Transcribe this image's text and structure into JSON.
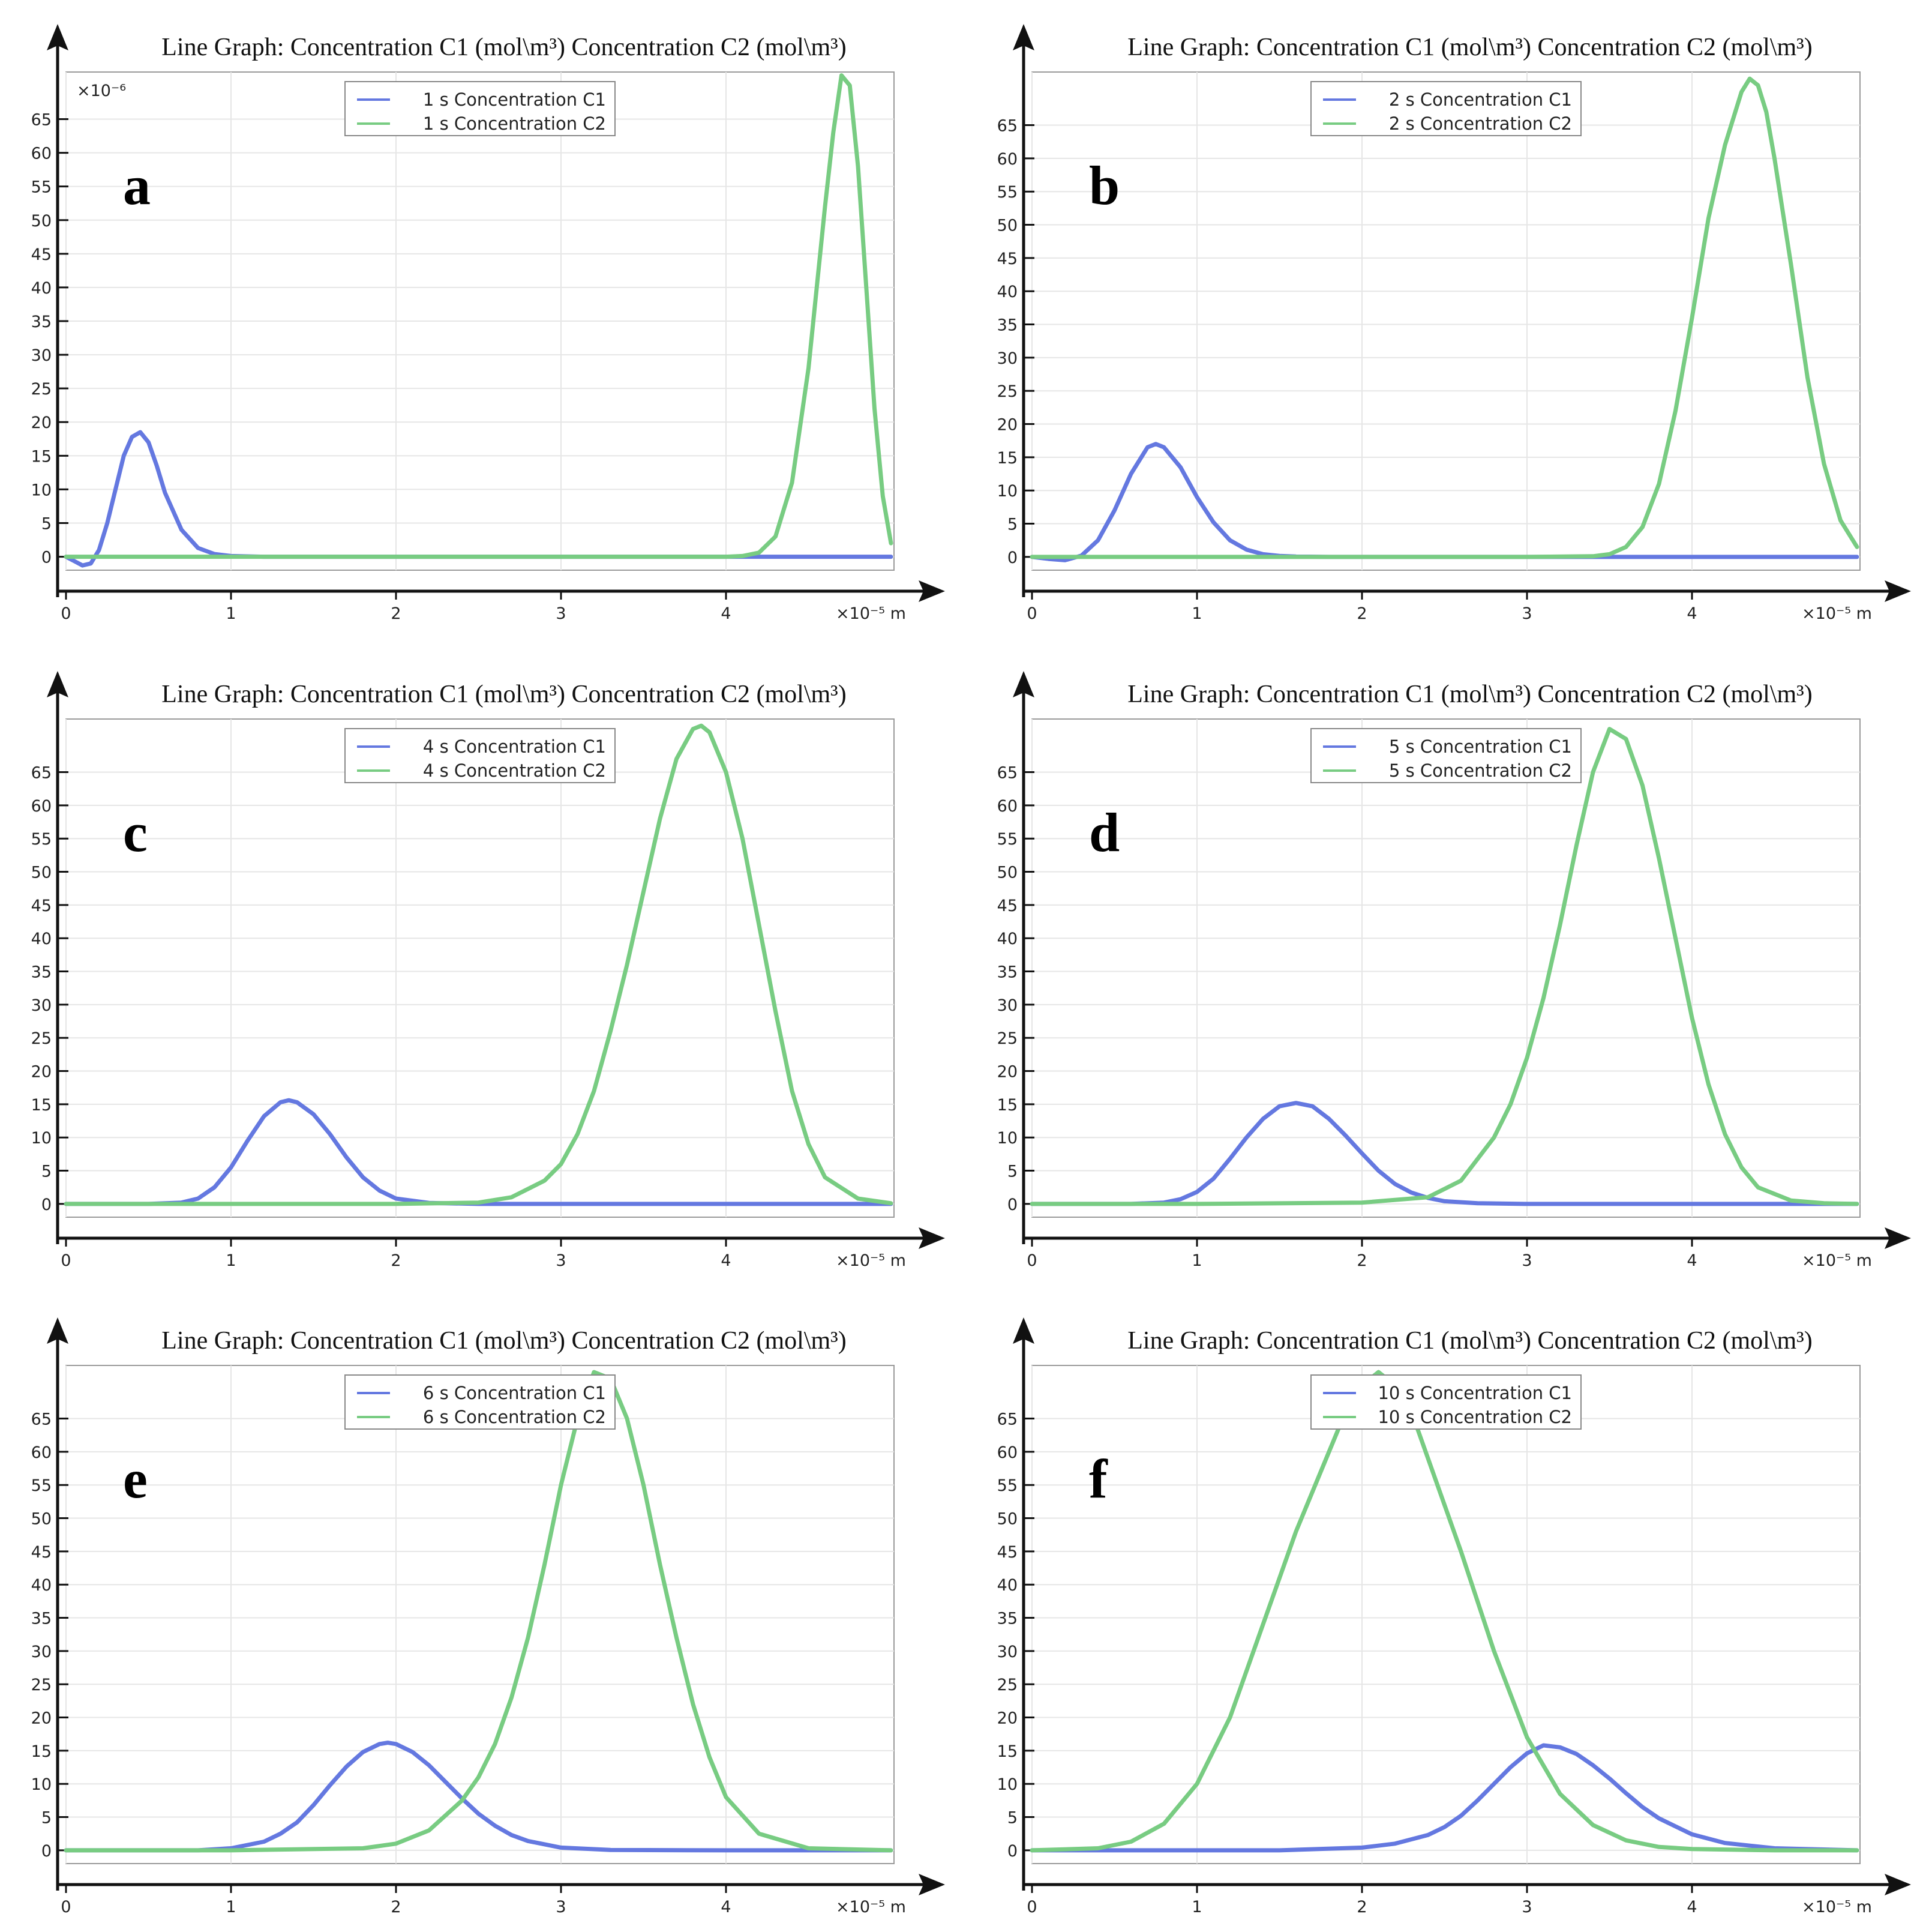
{
  "figure": {
    "colors": {
      "c1": "#6478e0",
      "c2": "#78cc82",
      "axis": "#111111",
      "grid": "#e6e6e6"
    }
  },
  "chart_data": [
    {
      "panel": "a",
      "type": "line",
      "title": "Line Graph: Concentration C1 (mol\\m³) Concentration C2 (mol\\m³)",
      "y_scale_label": "×10⁻⁶",
      "x_unit": "×10⁻⁵ m",
      "x_ticks": [
        "0",
        "1",
        "2",
        "3",
        "4"
      ],
      "y_ticks": [
        "0",
        "5",
        "10",
        "15",
        "20",
        "25",
        "30",
        "35",
        "40",
        "45",
        "50",
        "55",
        "60",
        "65"
      ],
      "xlim": [
        0,
        5
      ],
      "ylim": [
        -2,
        72
      ],
      "series": [
        {
          "name": "1 s Concentration C1",
          "color": "#6478e0",
          "x": [
            0,
            0.1,
            0.15,
            0.2,
            0.25,
            0.3,
            0.35,
            0.4,
            0.45,
            0.5,
            0.55,
            0.6,
            0.7,
            0.8,
            0.9,
            1.0,
            1.2,
            1.5,
            2,
            2.5,
            3,
            3.5,
            4,
            4.5,
            5
          ],
          "y": [
            0,
            -1.3,
            -1,
            1,
            5,
            10,
            15,
            17.8,
            18.5,
            17,
            13.5,
            9.5,
            4,
            1.3,
            0.4,
            0.1,
            0,
            0,
            0,
            0,
            0,
            0,
            0,
            0,
            0
          ]
        },
        {
          "name": "1 s Concentration C2",
          "color": "#78cc82",
          "x": [
            0,
            1,
            2,
            3,
            4,
            4.1,
            4.2,
            4.3,
            4.4,
            4.5,
            4.6,
            4.65,
            4.7,
            4.75,
            4.8,
            4.85,
            4.9,
            4.95,
            5.0
          ],
          "y": [
            0,
            0,
            0,
            0,
            0,
            0.1,
            0.6,
            3,
            11,
            28,
            52,
            63,
            71.5,
            70,
            58,
            40,
            22,
            9,
            2
          ]
        }
      ]
    },
    {
      "panel": "b",
      "type": "line",
      "title": "Line Graph: Concentration C1 (mol\\m³) Concentration C2 (mol\\m³)",
      "x_unit": "×10⁻⁵ m",
      "x_ticks": [
        "0",
        "1",
        "2",
        "3",
        "4"
      ],
      "y_ticks": [
        "0",
        "5",
        "10",
        "15",
        "20",
        "25",
        "30",
        "35",
        "40",
        "45",
        "50",
        "55",
        "60",
        "65"
      ],
      "xlim": [
        0,
        5
      ],
      "ylim": [
        -2,
        73
      ],
      "series": [
        {
          "name": "2 s Concentration C1",
          "color": "#6478e0",
          "x": [
            0,
            0.1,
            0.2,
            0.3,
            0.4,
            0.5,
            0.6,
            0.7,
            0.75,
            0.8,
            0.9,
            1.0,
            1.1,
            1.2,
            1.3,
            1.4,
            1.5,
            1.6,
            1.8,
            2.0,
            3,
            4,
            5
          ],
          "y": [
            0,
            -0.3,
            -0.5,
            0.2,
            2.5,
            7,
            12.5,
            16.5,
            17,
            16.5,
            13.5,
            9,
            5.2,
            2.5,
            1.1,
            0.4,
            0.15,
            0.05,
            0,
            0,
            0,
            0,
            0
          ]
        },
        {
          "name": "2 s Concentration C2",
          "color": "#78cc82",
          "x": [
            0,
            1,
            2,
            3,
            3.4,
            3.5,
            3.6,
            3.7,
            3.8,
            3.9,
            4.0,
            4.1,
            4.2,
            4.3,
            4.35,
            4.4,
            4.45,
            4.5,
            4.6,
            4.7,
            4.8,
            4.9,
            5.0
          ],
          "y": [
            0,
            0,
            0,
            0,
            0.1,
            0.4,
            1.5,
            4.5,
            11,
            22,
            36,
            51,
            62,
            70,
            72,
            71,
            67,
            60,
            44,
            27,
            14,
            5.5,
            1.5
          ]
        }
      ]
    },
    {
      "panel": "c",
      "type": "line",
      "title": "Line Graph: Concentration C1 (mol\\m³) Concentration C2 (mol\\m³)",
      "x_unit": "×10⁻⁵ m",
      "x_ticks": [
        "0",
        "1",
        "2",
        "3",
        "4"
      ],
      "y_ticks": [
        "0",
        "5",
        "10",
        "15",
        "20",
        "25",
        "30",
        "35",
        "40",
        "45",
        "50",
        "55",
        "60",
        "65"
      ],
      "xlim": [
        0,
        5
      ],
      "ylim": [
        -2,
        73
      ],
      "series": [
        {
          "name": "4 s Concentration C1",
          "color": "#6478e0",
          "x": [
            0,
            0.5,
            0.7,
            0.8,
            0.9,
            1.0,
            1.1,
            1.2,
            1.3,
            1.35,
            1.4,
            1.5,
            1.6,
            1.7,
            1.8,
            1.9,
            2.0,
            2.2,
            2.5,
            3,
            4,
            5
          ],
          "y": [
            0,
            0,
            0.2,
            0.8,
            2.5,
            5.5,
            9.5,
            13.2,
            15.3,
            15.6,
            15.3,
            13.5,
            10.5,
            7,
            4,
            2,
            0.8,
            0.15,
            0,
            0,
            0,
            0
          ]
        },
        {
          "name": "4 s Concentration C2",
          "color": "#78cc82",
          "x": [
            0,
            1,
            2,
            2.5,
            2.7,
            2.9,
            3.0,
            3.1,
            3.2,
            3.3,
            3.4,
            3.5,
            3.6,
            3.7,
            3.8,
            3.85,
            3.9,
            4.0,
            4.1,
            4.2,
            4.3,
            4.4,
            4.5,
            4.6,
            4.8,
            5.0
          ],
          "y": [
            0,
            0,
            0,
            0.2,
            1,
            3.5,
            6,
            10.5,
            17,
            26,
            36,
            47,
            58,
            67,
            71.5,
            72,
            71,
            65,
            55,
            42,
            29,
            17,
            9,
            4,
            0.8,
            0.1
          ]
        }
      ]
    },
    {
      "panel": "d",
      "type": "line",
      "title": "Line Graph: Concentration C1 (mol\\m³) Concentration C2 (mol\\m³)",
      "x_unit": "×10⁻⁵ m",
      "x_ticks": [
        "0",
        "1",
        "2",
        "3",
        "4"
      ],
      "y_ticks": [
        "0",
        "5",
        "10",
        "15",
        "20",
        "25",
        "30",
        "35",
        "40",
        "45",
        "50",
        "55",
        "60",
        "65"
      ],
      "xlim": [
        0,
        5
      ],
      "ylim": [
        -2,
        73
      ],
      "series": [
        {
          "name": "5 s Concentration C1",
          "color": "#6478e0",
          "x": [
            0,
            0.6,
            0.8,
            0.9,
            1.0,
            1.1,
            1.2,
            1.3,
            1.4,
            1.5,
            1.6,
            1.7,
            1.8,
            1.9,
            2.0,
            2.1,
            2.2,
            2.3,
            2.4,
            2.5,
            2.7,
            3,
            4,
            5
          ],
          "y": [
            0,
            0,
            0.2,
            0.7,
            1.8,
            3.8,
            6.8,
            10,
            12.8,
            14.7,
            15.2,
            14.7,
            12.8,
            10.3,
            7.6,
            5,
            3,
            1.7,
            0.9,
            0.4,
            0.1,
            0,
            0,
            0
          ]
        },
        {
          "name": "5 s Concentration C2",
          "color": "#78cc82",
          "x": [
            0,
            1,
            2,
            2.4,
            2.6,
            2.8,
            2.9,
            3.0,
            3.1,
            3.2,
            3.3,
            3.4,
            3.5,
            3.6,
            3.7,
            3.8,
            3.9,
            4.0,
            4.1,
            4.2,
            4.3,
            4.4,
            4.6,
            4.8,
            5.0
          ],
          "y": [
            0,
            0,
            0.2,
            1,
            3.5,
            10,
            15,
            22,
            31,
            42,
            54,
            65,
            71.5,
            70,
            63,
            52,
            40,
            28,
            18,
            10.5,
            5.5,
            2.5,
            0.5,
            0.1,
            0
          ]
        }
      ]
    },
    {
      "panel": "e",
      "type": "line",
      "title": "Line Graph: Concentration C1 (mol\\m³) Concentration C2 (mol\\m³)",
      "x_unit": "×10⁻⁵ m",
      "x_ticks": [
        "0",
        "1",
        "2",
        "3",
        "4"
      ],
      "y_ticks": [
        "0",
        "5",
        "10",
        "15",
        "20",
        "25",
        "30",
        "35",
        "40",
        "45",
        "50",
        "55",
        "60",
        "65"
      ],
      "xlim": [
        0,
        5
      ],
      "ylim": [
        -2,
        73
      ],
      "series": [
        {
          "name": "6 s Concentration C1",
          "color": "#6478e0",
          "x": [
            0,
            0.8,
            1.0,
            1.2,
            1.3,
            1.4,
            1.5,
            1.6,
            1.7,
            1.8,
            1.9,
            1.95,
            2.0,
            2.1,
            2.2,
            2.3,
            2.4,
            2.5,
            2.6,
            2.7,
            2.8,
            3.0,
            3.3,
            4,
            5
          ],
          "y": [
            0,
            0,
            0.3,
            1.3,
            2.5,
            4.2,
            6.8,
            9.8,
            12.6,
            14.8,
            16,
            16.2,
            16,
            14.8,
            12.8,
            10.3,
            7.8,
            5.5,
            3.7,
            2.3,
            1.4,
            0.4,
            0.05,
            0,
            0
          ]
        },
        {
          "name": "6 s Concentration C2",
          "color": "#78cc82",
          "x": [
            0,
            1,
            1.8,
            2.0,
            2.2,
            2.4,
            2.5,
            2.6,
            2.7,
            2.8,
            2.9,
            3.0,
            3.1,
            3.2,
            3.3,
            3.4,
            3.5,
            3.6,
            3.7,
            3.8,
            3.9,
            4.0,
            4.2,
            4.5,
            5.0
          ],
          "y": [
            0,
            0,
            0.3,
            1,
            3,
            7.5,
            11,
            16,
            23,
            32,
            43,
            55,
            65,
            72,
            71,
            65,
            55,
            43,
            32,
            22,
            14,
            8,
            2.5,
            0.3,
            0
          ]
        }
      ]
    },
    {
      "panel": "f",
      "type": "line",
      "title": "Line Graph: Concentration C1 (mol\\m³) Concentration C2 (mol\\m³)",
      "x_unit": "×10⁻⁵ m",
      "x_ticks": [
        "0",
        "1",
        "2",
        "3",
        "4"
      ],
      "y_ticks": [
        "0",
        "5",
        "10",
        "15",
        "20",
        "25",
        "30",
        "35",
        "40",
        "45",
        "50",
        "55",
        "60",
        "65"
      ],
      "xlim": [
        0,
        5
      ],
      "ylim": [
        -2,
        73
      ],
      "series": [
        {
          "name": "10 s Concentration C1",
          "color": "#6478e0",
          "x": [
            0,
            1.5,
            2.0,
            2.2,
            2.4,
            2.5,
            2.6,
            2.7,
            2.8,
            2.9,
            3.0,
            3.1,
            3.2,
            3.3,
            3.4,
            3.5,
            3.6,
            3.7,
            3.8,
            4.0,
            4.2,
            4.5,
            5.0
          ],
          "y": [
            0,
            0,
            0.4,
            1,
            2.3,
            3.5,
            5.2,
            7.5,
            10,
            12.5,
            14.6,
            15.8,
            15.5,
            14.5,
            12.8,
            10.8,
            8.6,
            6.5,
            4.8,
            2.4,
            1.1,
            0.3,
            0
          ]
        },
        {
          "name": "10 s Concentration C2",
          "color": "#78cc82",
          "x": [
            0,
            0.4,
            0.6,
            0.8,
            1.0,
            1.2,
            1.4,
            1.6,
            1.8,
            1.9,
            2.0,
            2.1,
            2.2,
            2.3,
            2.4,
            2.6,
            2.8,
            3.0,
            3.2,
            3.4,
            3.6,
            3.8,
            4.0,
            4.5,
            5.0
          ],
          "y": [
            0,
            0.3,
            1.3,
            4,
            10,
            20,
            34,
            48,
            60,
            66,
            70,
            72,
            70,
            66,
            59,
            45,
            30,
            17,
            8.5,
            3.8,
            1.5,
            0.5,
            0.2,
            0,
            0
          ]
        }
      ]
    }
  ]
}
